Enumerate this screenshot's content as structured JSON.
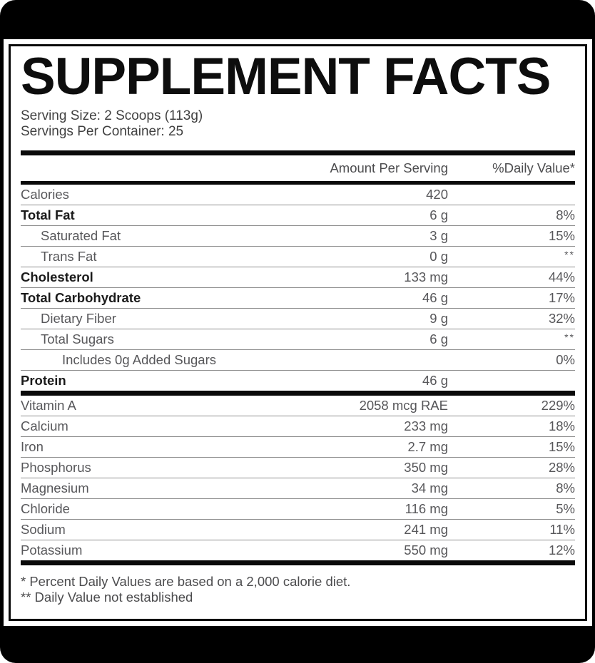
{
  "colors": {
    "background": "#000000",
    "panel": "#ffffff",
    "rule_thin": "#8d8d8d",
    "rule_thick": "#0a0a0a",
    "text_primary": "#1b1b1b",
    "text_secondary": "#57575a"
  },
  "label": {
    "title": "SUPPLEMENT FACTS",
    "serving_size": "Serving Size: 2 Scoops (113g)",
    "servings_per_container": "Servings Per Container: 25",
    "columns": {
      "amount": "Amount Per Serving",
      "dv": "%Daily Value*"
    },
    "rows": [
      {
        "label": "Calories",
        "amount": "420",
        "dv": "",
        "style": "regular",
        "indent": 0,
        "thick_after": false
      },
      {
        "label": "Total Fat",
        "amount": "6 g",
        "dv": "8%",
        "style": "bold",
        "indent": 0,
        "thick_after": false
      },
      {
        "label": "Saturated Fat",
        "amount": "3 g",
        "dv": "15%",
        "style": "regular",
        "indent": 1,
        "thick_after": false
      },
      {
        "label": "Trans Fat",
        "amount": "0 g",
        "dv": "**",
        "style": "regular",
        "indent": 1,
        "thick_after": false
      },
      {
        "label": "Cholesterol",
        "amount": "133 mg",
        "dv": "44%",
        "style": "bold",
        "indent": 0,
        "thick_after": false
      },
      {
        "label": "Total Carbohydrate",
        "amount": "46 g",
        "dv": "17%",
        "style": "bold",
        "indent": 0,
        "thick_after": false
      },
      {
        "label": "Dietary Fiber",
        "amount": "9 g",
        "dv": "32%",
        "style": "regular",
        "indent": 1,
        "thick_after": false
      },
      {
        "label": "Total Sugars",
        "amount": "6 g",
        "dv": "**",
        "style": "regular",
        "indent": 1,
        "thick_after": false
      },
      {
        "label": "Includes 0g Added Sugars",
        "amount": "",
        "dv": "0%",
        "style": "regular",
        "indent": 2,
        "thick_after": false
      },
      {
        "label": "Protein",
        "amount": "46 g",
        "dv": "",
        "style": "bold",
        "indent": 0,
        "thick_after": true
      },
      {
        "label": "Vitamin A",
        "amount": "2058 mcg RAE",
        "dv": "229%",
        "style": "regular",
        "indent": 0,
        "thick_after": false
      },
      {
        "label": "Calcium",
        "amount": "233 mg",
        "dv": "18%",
        "style": "regular",
        "indent": 0,
        "thick_after": false
      },
      {
        "label": "Iron",
        "amount": "2.7 mg",
        "dv": "15%",
        "style": "regular",
        "indent": 0,
        "thick_after": false
      },
      {
        "label": "Phosphorus",
        "amount": "350 mg",
        "dv": "28%",
        "style": "regular",
        "indent": 0,
        "thick_after": false
      },
      {
        "label": "Magnesium",
        "amount": "34 mg",
        "dv": "8%",
        "style": "regular",
        "indent": 0,
        "thick_after": false
      },
      {
        "label": "Chloride",
        "amount": "116 mg",
        "dv": "5%",
        "style": "regular",
        "indent": 0,
        "thick_after": false
      },
      {
        "label": "Sodium",
        "amount": "241 mg",
        "dv": "11%",
        "style": "regular",
        "indent": 0,
        "thick_after": false
      },
      {
        "label": "Potassium",
        "amount": "550 mg",
        "dv": "12%",
        "style": "regular",
        "indent": 0,
        "thick_after": true
      }
    ],
    "footnotes": [
      "* Percent Daily Values are based on a 2,000 calorie diet.",
      "** Daily Value not established"
    ]
  }
}
